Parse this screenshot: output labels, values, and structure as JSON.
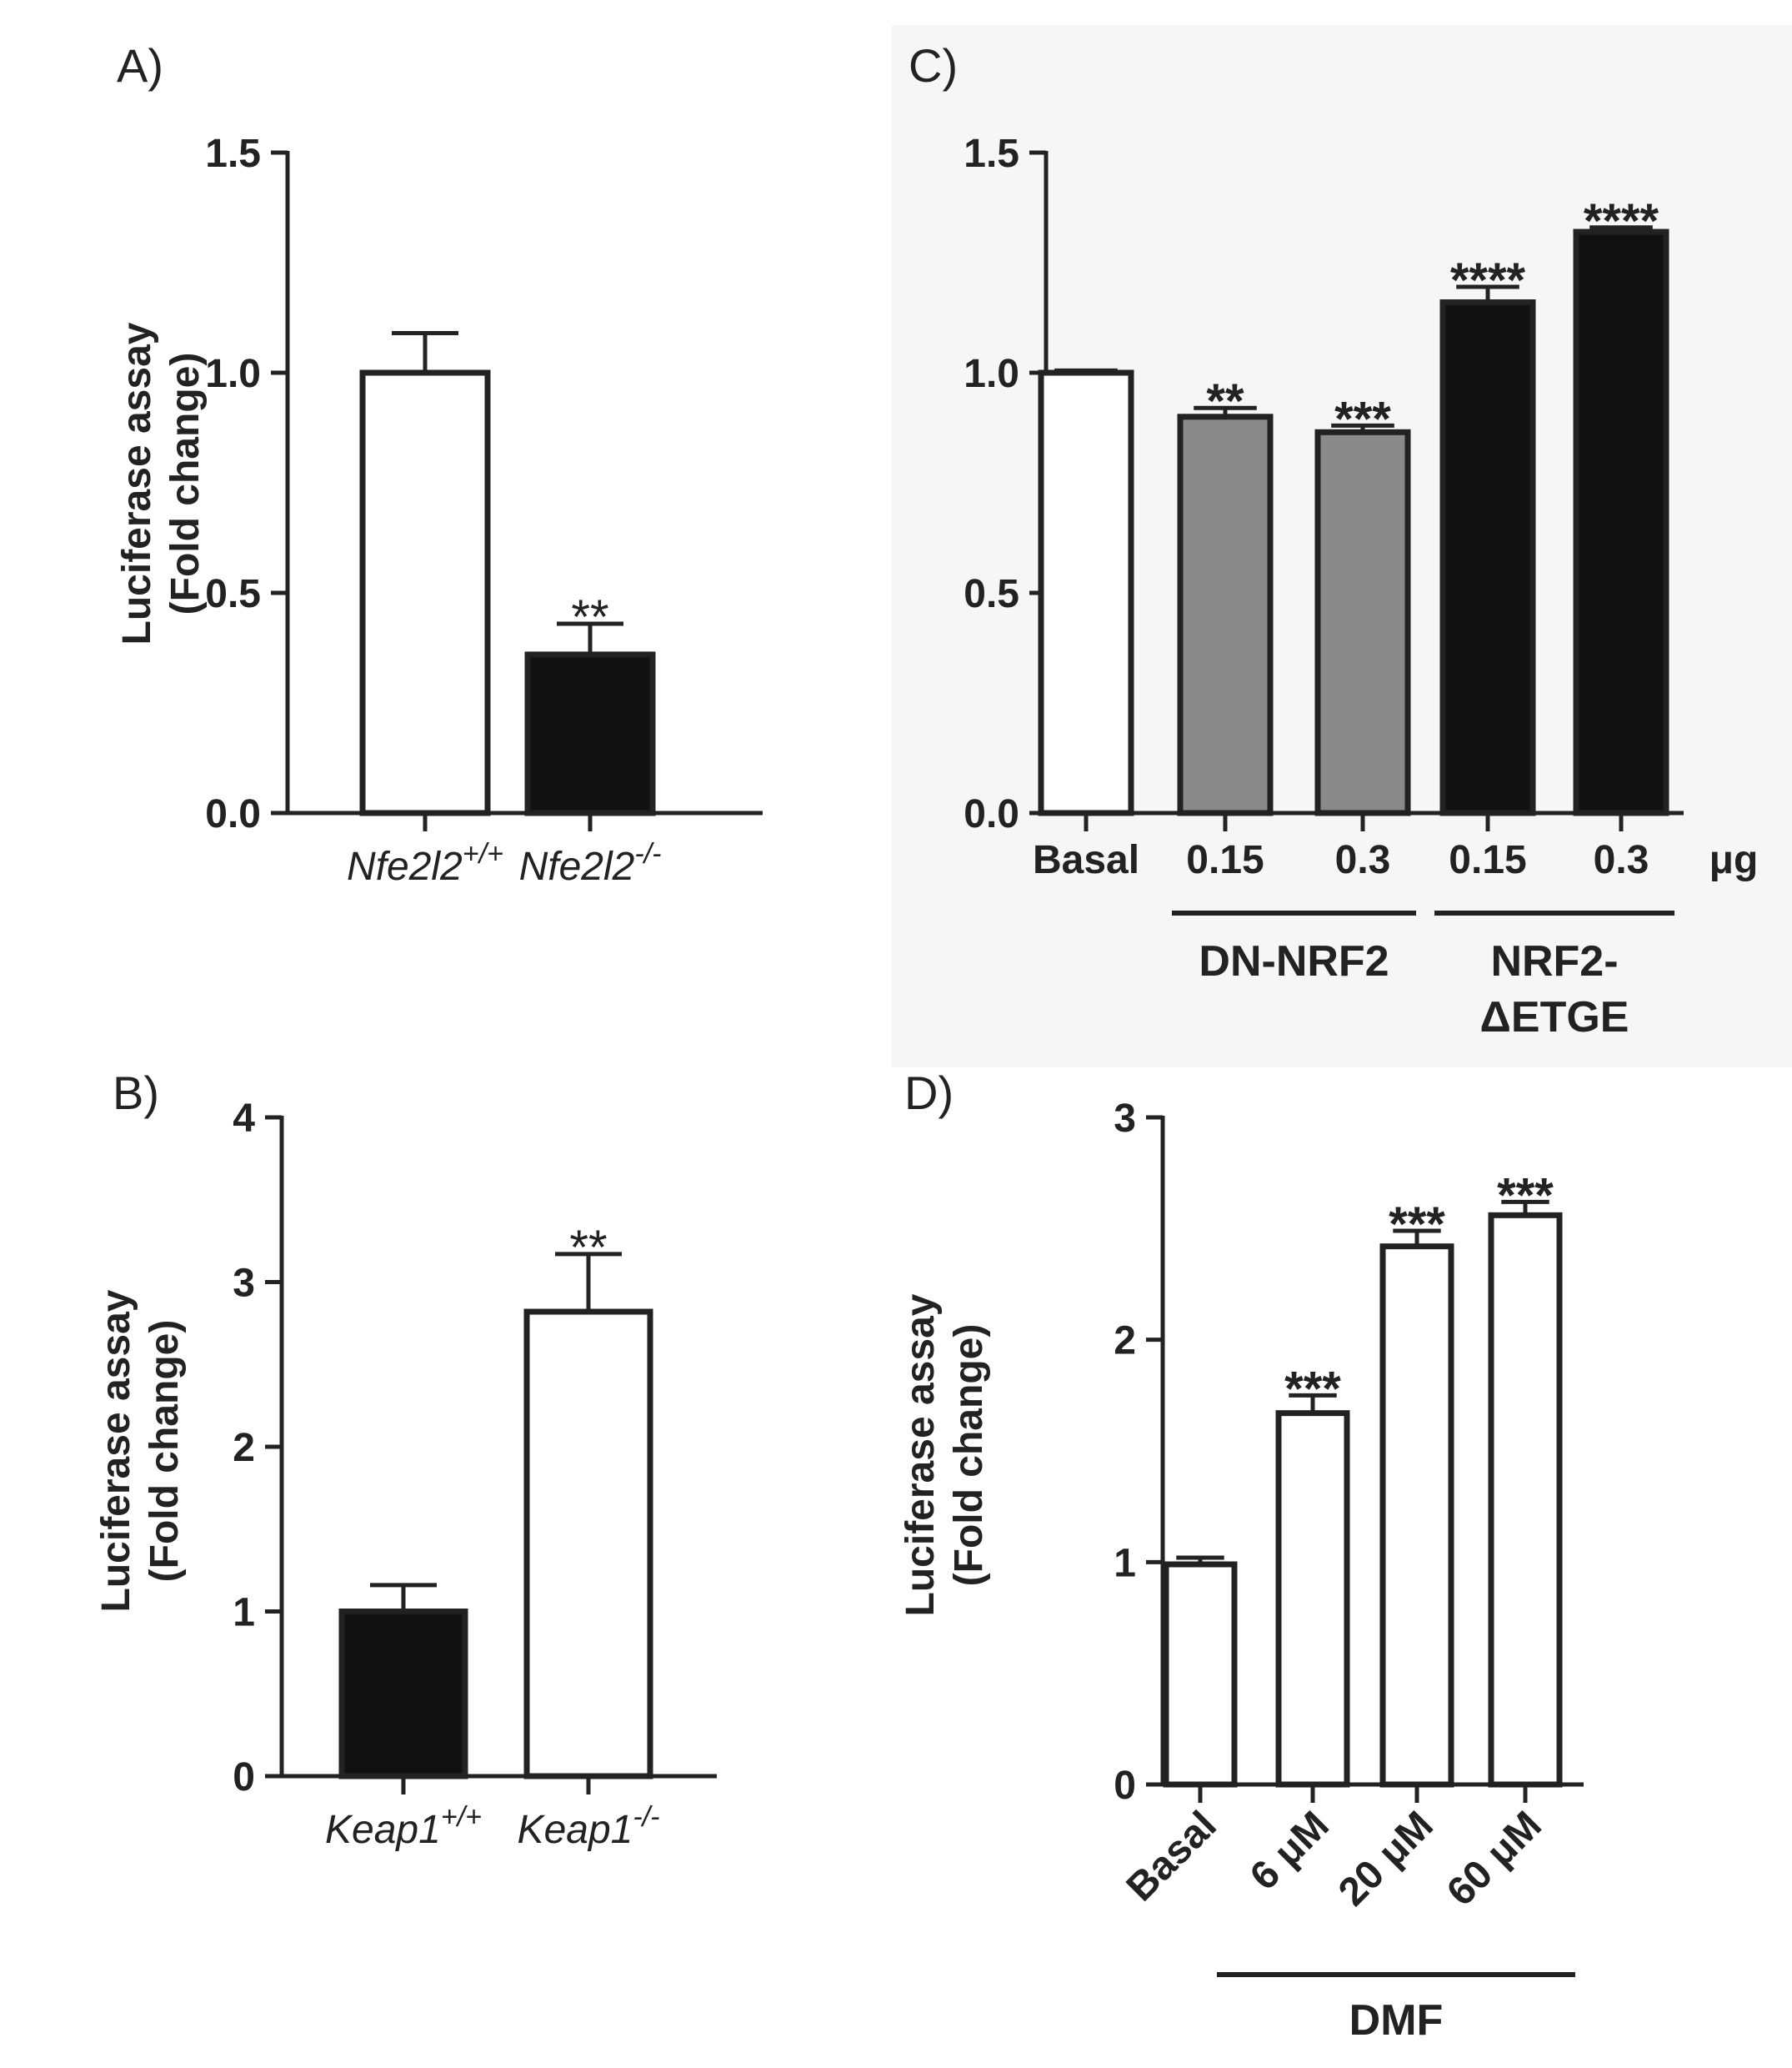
{
  "colors": {
    "white": "#ffffff",
    "gray": "#8a8a8a",
    "black": "#111111",
    "ink": "#222222",
    "panelC_bg": "#f6f6f6"
  },
  "chart_data": [
    {
      "panel": "A)",
      "type": "bar",
      "ylabel": "Luciferase assay",
      "ylabel2": "(Fold change)",
      "ylim": [
        0,
        1.5
      ],
      "yticks": [
        "0.0",
        "0.5",
        "1.0",
        "1.5"
      ],
      "categories": [
        {
          "name": "Nfe2l2",
          "sup": "+/+"
        },
        {
          "name": "Nfe2l2",
          "sup": "-/-"
        }
      ],
      "values": [
        1.0,
        0.36
      ],
      "errors": [
        0.09,
        0.07
      ],
      "fills": [
        "white",
        "black"
      ],
      "significance": [
        "",
        "**"
      ]
    },
    {
      "panel": "B)",
      "type": "bar",
      "ylabel": "Luciferase assay",
      "ylabel2": "(Fold change)",
      "ylim": [
        0,
        4
      ],
      "yticks": [
        "0",
        "1",
        "2",
        "3",
        "4"
      ],
      "categories": [
        {
          "name": "Keap1",
          "sup": "+/+"
        },
        {
          "name": "Keap1",
          "sup": "-/-"
        }
      ],
      "values": [
        1.0,
        2.82
      ],
      "errors": [
        0.16,
        0.35
      ],
      "fills": [
        "black",
        "white"
      ],
      "significance": [
        "",
        "**"
      ]
    },
    {
      "panel": "C)",
      "type": "bar",
      "ylim": [
        0,
        1.5
      ],
      "yticks": [
        "0.0",
        "0.5",
        "1.0",
        "1.5"
      ],
      "categories": [
        "Basal",
        "0.15",
        "0.3",
        "0.15",
        "0.3"
      ],
      "unit": "μg",
      "values": [
        1.0,
        0.9,
        0.865,
        1.16,
        1.32
      ],
      "errors": [
        0.005,
        0.02,
        0.015,
        0.035,
        0.01
      ],
      "fills": [
        "white",
        "gray",
        "gray",
        "black",
        "black"
      ],
      "significance": [
        "",
        "**",
        "***",
        "****",
        "****"
      ],
      "groups": [
        {
          "label": "DN-NRF2",
          "first": 1,
          "last": 2
        },
        {
          "label": "NRF2-",
          "label2": "ΔETGE",
          "first": 3,
          "last": 4
        }
      ]
    },
    {
      "panel": "D)",
      "type": "bar",
      "ylabel": "Luciferase assay",
      "ylabel2": "(Fold change)",
      "ylim": [
        0,
        3
      ],
      "yticks": [
        "0",
        "1",
        "2",
        "3"
      ],
      "categories": [
        "Basal",
        "6 μM",
        "20 μM",
        "60 μM"
      ],
      "values": [
        0.99,
        1.67,
        2.42,
        2.56
      ],
      "errors": [
        0.03,
        0.08,
        0.07,
        0.06
      ],
      "fills": [
        "white",
        "white",
        "white",
        "white"
      ],
      "significance": [
        "",
        "***",
        "***",
        "***"
      ],
      "groups": [
        {
          "label": "DMF",
          "first": 1,
          "last": 3
        }
      ]
    }
  ]
}
